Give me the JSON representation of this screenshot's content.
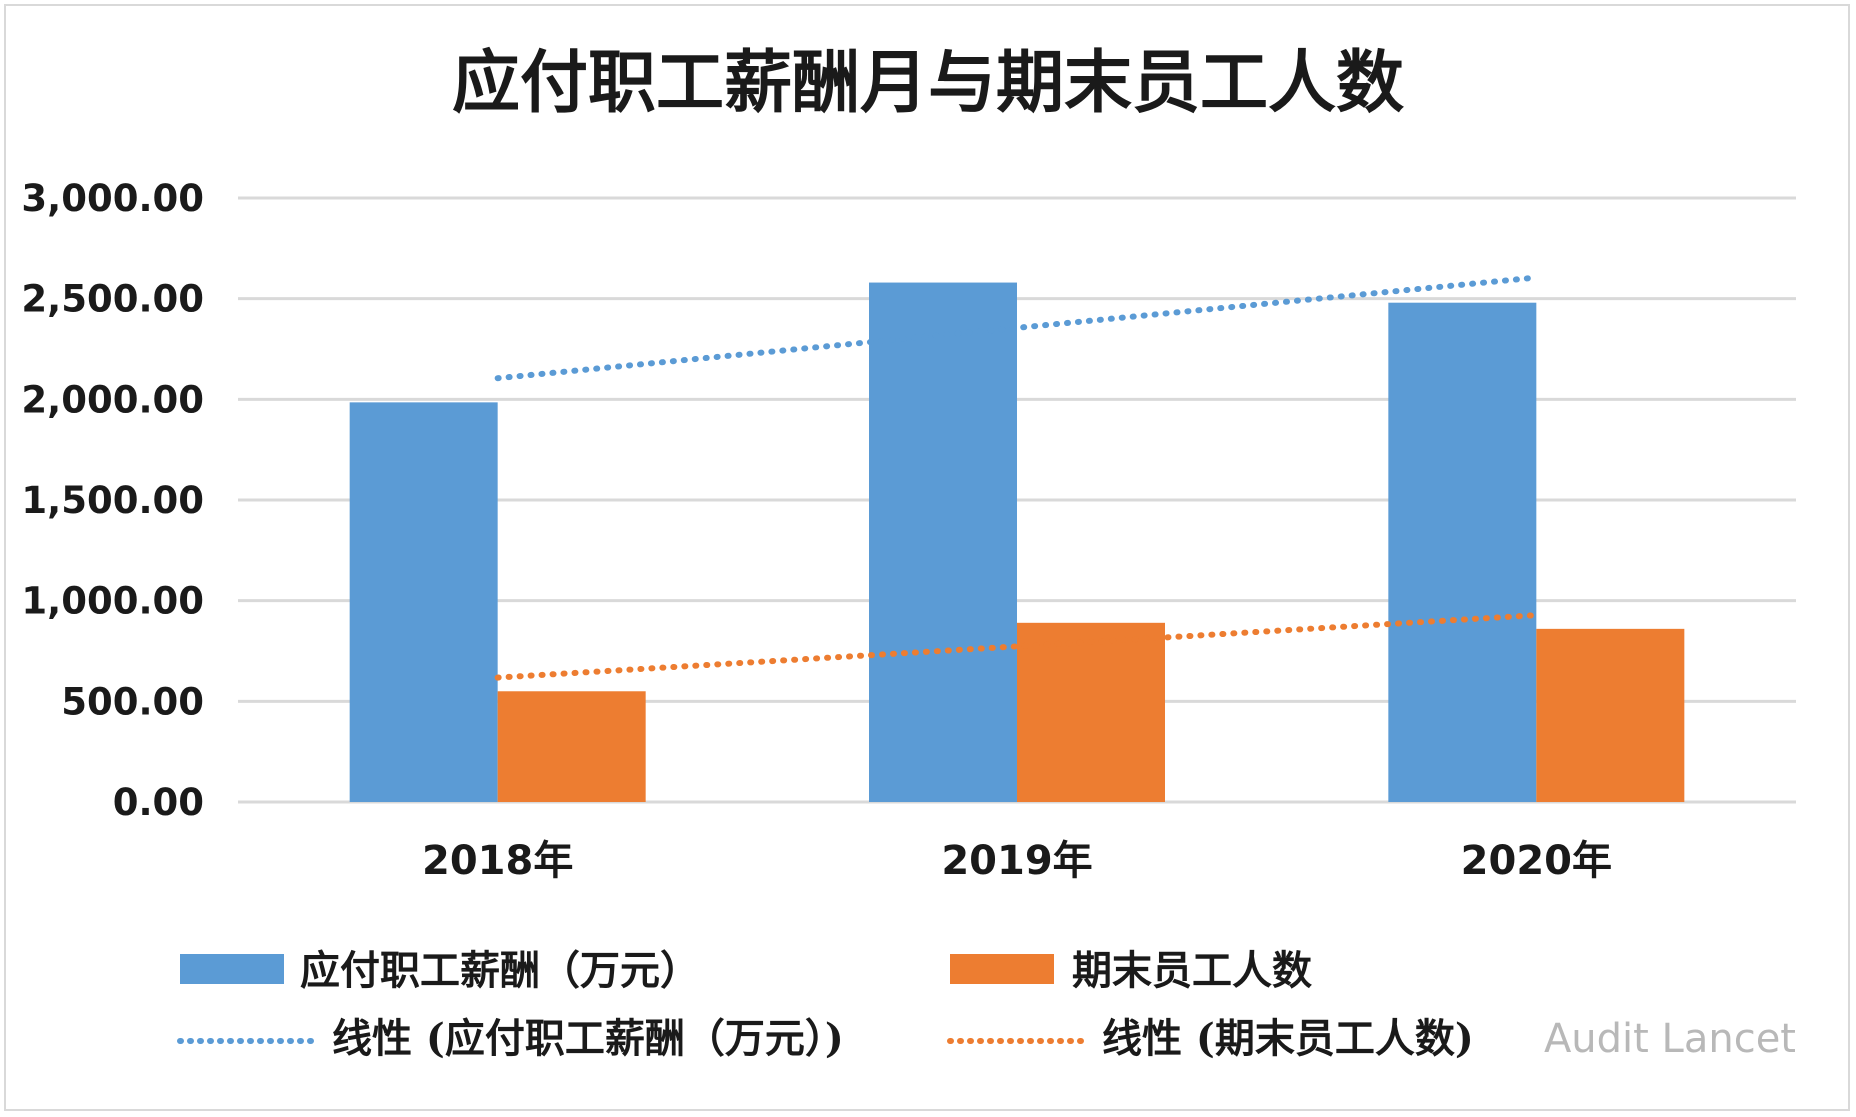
{
  "chart_data": {
    "type": "bar",
    "title": "应付职工薪酬月与期末员工人数",
    "categories": [
      "2018年",
      "2019年",
      "2020年"
    ],
    "series": [
      {
        "name": "应付职工薪酬（万元）",
        "values": [
          1985,
          2580,
          2480
        ],
        "color": "#5b9bd5"
      },
      {
        "name": "期末员工人数",
        "values": [
          550,
          890,
          860
        ],
        "color": "#ed7d31"
      }
    ],
    "trendlines": [
      {
        "name": "线性 (应付职工薪酬（万元）)",
        "values": [
          2105,
          2355,
          2605
        ],
        "color": "#5b9bd5",
        "style": "dotted"
      },
      {
        "name": "线性 (期末员工人数)",
        "values": [
          618,
          773,
          928
        ],
        "color": "#ed7d31",
        "style": "dotted"
      }
    ],
    "ylim": [
      0,
      3000
    ],
    "yticks": [
      "0.00",
      "500.00",
      "1,000.00",
      "1,500.00",
      "2,000.00",
      "2,500.00",
      "3,000.00"
    ],
    "ytick_values": [
      0,
      500,
      1000,
      1500,
      2000,
      2500,
      3000
    ],
    "grid": true,
    "legend_position": "bottom"
  },
  "watermark": "Audit Lancet"
}
